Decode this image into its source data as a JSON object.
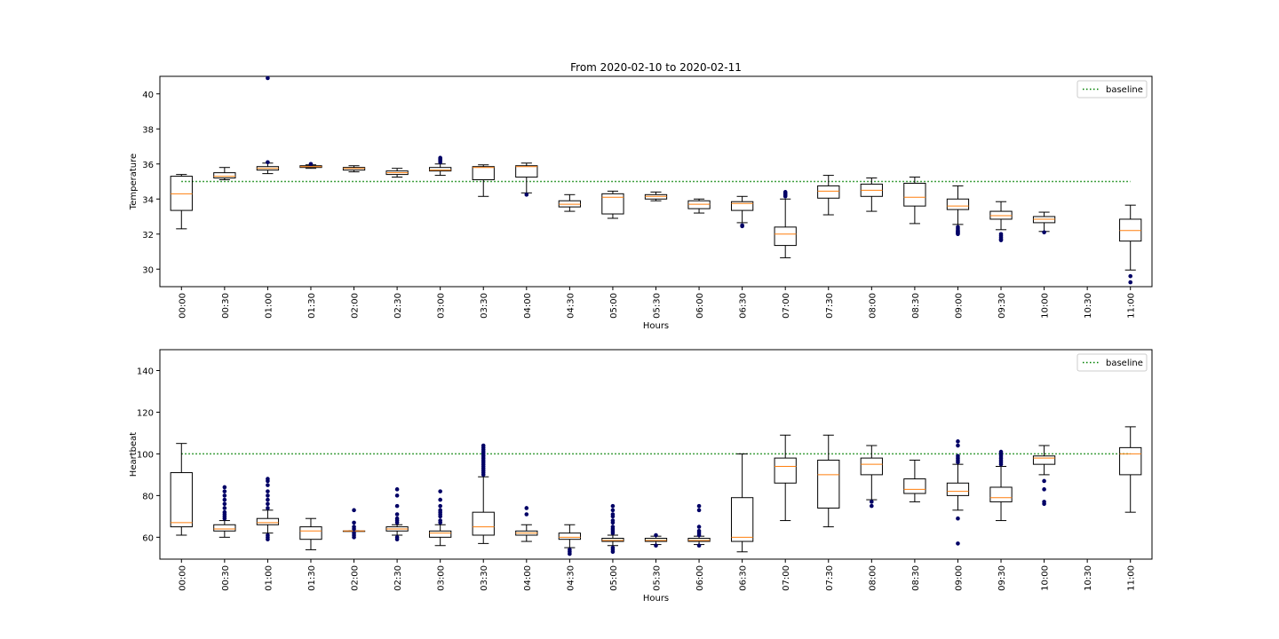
{
  "figure_title": "From 2020-02-10 to 2020-02-11",
  "colors": {
    "box_edge": "#000000",
    "median": "#ff7f0e",
    "outlier": "#000066",
    "baseline": "#008000"
  },
  "chart_data": [
    {
      "type": "boxplot",
      "title": "From 2020-02-10 to 2020-02-11",
      "xlabel": "Hours",
      "ylabel": "Temperature",
      "ylim": [
        29.0,
        41.0
      ],
      "yticks": [
        30,
        32,
        34,
        36,
        38,
        40
      ],
      "legend": {
        "label": "baseline",
        "placement": "top-right"
      },
      "baseline": 35.0,
      "categories": [
        "00:00",
        "00:30",
        "01:00",
        "01:30",
        "02:00",
        "02:30",
        "03:00",
        "03:30",
        "04:00",
        "04:30",
        "05:00",
        "05:30",
        "06:00",
        "06:30",
        "07:00",
        "07:30",
        "08:00",
        "08:30",
        "09:00",
        "09:30",
        "10:00",
        "10:30",
        "11:00"
      ],
      "boxes": [
        {
          "q1": 33.35,
          "median": 34.3,
          "q3": 35.3,
          "whislo": 32.3,
          "whishi": 35.4,
          "fliers": []
        },
        {
          "q1": 35.2,
          "median": 35.3,
          "q3": 35.5,
          "whislo": 35.1,
          "whishi": 35.8,
          "fliers": []
        },
        {
          "q1": 35.65,
          "median": 35.75,
          "q3": 35.85,
          "whislo": 35.45,
          "whishi": 36.05,
          "fliers": [
            36.1,
            40.9
          ]
        },
        {
          "q1": 35.8,
          "median": 35.85,
          "q3": 35.9,
          "whislo": 35.75,
          "whishi": 35.95,
          "fliers": [
            36.0
          ]
        },
        {
          "q1": 35.65,
          "median": 35.75,
          "q3": 35.8,
          "whislo": 35.55,
          "whishi": 35.9,
          "fliers": []
        },
        {
          "q1": 35.4,
          "median": 35.5,
          "q3": 35.6,
          "whislo": 35.25,
          "whishi": 35.75,
          "fliers": []
        },
        {
          "q1": 35.6,
          "median": 35.65,
          "q3": 35.8,
          "whislo": 35.35,
          "whishi": 36.0,
          "fliers": [
            36.1,
            36.2,
            36.25,
            36.3,
            36.35
          ]
        },
        {
          "q1": 35.1,
          "median": 35.8,
          "q3": 35.85,
          "whislo": 34.15,
          "whishi": 35.95,
          "fliers": []
        },
        {
          "q1": 35.25,
          "median": 35.85,
          "q3": 35.9,
          "whislo": 34.35,
          "whishi": 36.05,
          "fliers": [
            34.25
          ]
        },
        {
          "q1": 33.55,
          "median": 33.7,
          "q3": 33.9,
          "whislo": 33.3,
          "whishi": 34.25,
          "fliers": []
        },
        {
          "q1": 33.15,
          "median": 34.1,
          "q3": 34.3,
          "whislo": 32.9,
          "whishi": 34.45,
          "fliers": []
        },
        {
          "q1": 34.0,
          "median": 34.15,
          "q3": 34.25,
          "whislo": 33.9,
          "whishi": 34.4,
          "fliers": []
        },
        {
          "q1": 33.45,
          "median": 33.7,
          "q3": 33.9,
          "whislo": 33.2,
          "whishi": 34.0,
          "fliers": []
        },
        {
          "q1": 33.35,
          "median": 33.75,
          "q3": 33.85,
          "whislo": 32.65,
          "whishi": 34.15,
          "fliers": [
            32.5,
            32.45
          ]
        },
        {
          "q1": 31.35,
          "median": 32.0,
          "q3": 32.4,
          "whislo": 30.65,
          "whishi": 34.0,
          "fliers": [
            34.15,
            34.2,
            34.25,
            34.3,
            34.35,
            34.4
          ]
        },
        {
          "q1": 34.05,
          "median": 34.45,
          "q3": 34.75,
          "whislo": 33.1,
          "whishi": 35.35,
          "fliers": []
        },
        {
          "q1": 34.15,
          "median": 34.5,
          "q3": 34.85,
          "whislo": 33.3,
          "whishi": 35.2,
          "fliers": []
        },
        {
          "q1": 33.6,
          "median": 34.1,
          "q3": 34.9,
          "whislo": 32.6,
          "whishi": 35.25,
          "fliers": []
        },
        {
          "q1": 33.4,
          "median": 33.6,
          "q3": 34.0,
          "whislo": 32.55,
          "whishi": 34.75,
          "fliers": [
            32.4,
            32.3,
            32.2,
            32.15,
            32.1,
            32.05,
            32.0
          ]
        },
        {
          "q1": 32.85,
          "median": 33.05,
          "q3": 33.3,
          "whislo": 32.25,
          "whishi": 33.85,
          "fliers": [
            32.0,
            31.9,
            31.8,
            31.7,
            31.65
          ]
        },
        {
          "q1": 32.65,
          "median": 32.85,
          "q3": 33.0,
          "whislo": 32.15,
          "whishi": 33.25,
          "fliers": [
            32.1
          ]
        },
        null,
        {
          "q1": 31.6,
          "median": 32.2,
          "q3": 32.85,
          "whislo": 29.95,
          "whishi": 33.65,
          "fliers": [
            29.6,
            29.25
          ]
        }
      ]
    },
    {
      "type": "boxplot",
      "title": "",
      "xlabel": "Hours",
      "ylabel": "Heartbeat",
      "ylim": [
        49.5,
        150.0
      ],
      "yticks": [
        60,
        80,
        100,
        120,
        140
      ],
      "legend": {
        "label": "baseline",
        "placement": "top-right"
      },
      "baseline": 100.0,
      "categories": [
        "00:00",
        "00:30",
        "01:00",
        "01:30",
        "02:00",
        "02:30",
        "03:00",
        "03:30",
        "04:00",
        "04:30",
        "05:00",
        "05:30",
        "06:00",
        "06:30",
        "07:00",
        "07:30",
        "08:00",
        "08:30",
        "09:00",
        "09:30",
        "10:00",
        "10:30",
        "11:00"
      ],
      "boxes": [
        {
          "q1": 65,
          "median": 67,
          "q3": 91,
          "whislo": 61,
          "whishi": 105,
          "fliers": []
        },
        {
          "q1": 63,
          "median": 64,
          "q3": 66,
          "whislo": 60,
          "whishi": 68,
          "fliers": [
            69,
            70,
            71,
            72,
            74,
            76,
            78,
            80,
            82,
            84
          ]
        },
        {
          "q1": 66,
          "median": 67,
          "q3": 69,
          "whislo": 62,
          "whishi": 73,
          "fliers": [
            74,
            76,
            78,
            80,
            82,
            85,
            87,
            88,
            61,
            60,
            59
          ]
        },
        {
          "q1": 59,
          "median": 63,
          "q3": 65,
          "whislo": 54,
          "whishi": 69,
          "fliers": []
        },
        {
          "q1": 63,
          "median": 63,
          "q3": 63,
          "whislo": 63,
          "whishi": 63,
          "fliers": [
            60,
            61,
            62,
            64,
            65,
            67,
            73
          ]
        },
        {
          "q1": 63,
          "median": 64,
          "q3": 65,
          "whislo": 61,
          "whishi": 66,
          "fliers": [
            59,
            60,
            67,
            68,
            69,
            71,
            75,
            80,
            83
          ]
        },
        {
          "q1": 60,
          "median": 62,
          "q3": 63,
          "whislo": 56,
          "whishi": 66,
          "fliers": [
            67,
            68,
            70,
            71,
            72,
            73,
            75,
            78,
            82
          ]
        },
        {
          "q1": 61,
          "median": 65,
          "q3": 72,
          "whislo": 57,
          "whishi": 89,
          "fliers": [
            90,
            91,
            92,
            93,
            94,
            95,
            96,
            97,
            98,
            99,
            100,
            101,
            102,
            103,
            104
          ]
        },
        {
          "q1": 61,
          "median": 62,
          "q3": 63,
          "whislo": 58,
          "whishi": 66,
          "fliers": [
            71,
            74
          ]
        },
        {
          "q1": 59,
          "median": 60,
          "q3": 62,
          "whislo": 55,
          "whishi": 66,
          "fliers": [
            54,
            53,
            52
          ]
        },
        {
          "q1": 58,
          "median": 58.5,
          "q3": 59.5,
          "whislo": 56,
          "whishi": 61,
          "fliers": [
            55,
            54,
            53,
            62,
            63,
            64,
            65,
            67,
            68,
            70,
            71,
            73,
            75
          ]
        },
        {
          "q1": 58,
          "median": 58.5,
          "q3": 59.5,
          "whislo": 56.5,
          "whishi": 60.5,
          "fliers": [
            56,
            61
          ]
        },
        {
          "q1": 58,
          "median": 58.5,
          "q3": 59.5,
          "whislo": 56.5,
          "whishi": 60.5,
          "fliers": [
            56,
            61,
            62,
            63,
            65,
            73,
            75
          ]
        },
        {
          "q1": 58,
          "median": 60,
          "q3": 79,
          "whislo": 53,
          "whishi": 100,
          "fliers": []
        },
        {
          "q1": 86,
          "median": 94,
          "q3": 98,
          "whislo": 68,
          "whishi": 109,
          "fliers": []
        },
        {
          "q1": 74,
          "median": 90,
          "q3": 97,
          "whislo": 65,
          "whishi": 109,
          "fliers": []
        },
        {
          "q1": 90,
          "median": 95,
          "q3": 98,
          "whislo": 78,
          "whishi": 104,
          "fliers": [
            75,
            77
          ]
        },
        {
          "q1": 81,
          "median": 83,
          "q3": 88,
          "whislo": 77,
          "whishi": 97,
          "fliers": []
        },
        {
          "q1": 80,
          "median": 82,
          "q3": 86,
          "whislo": 73,
          "whishi": 95,
          "fliers": [
            57,
            69,
            96,
            97,
            98,
            99,
            104,
            106
          ]
        },
        {
          "q1": 77,
          "median": 79,
          "q3": 84,
          "whislo": 68,
          "whishi": 94,
          "fliers": [
            95,
            96,
            97,
            98,
            99,
            100,
            101
          ]
        },
        {
          "q1": 95,
          "median": 98,
          "q3": 99,
          "whislo": 90,
          "whishi": 104,
          "fliers": [
            76,
            77,
            83,
            87
          ]
        },
        null,
        {
          "q1": 90,
          "median": 100,
          "q3": 103,
          "whislo": 72,
          "whishi": 113,
          "fliers": []
        }
      ]
    }
  ]
}
